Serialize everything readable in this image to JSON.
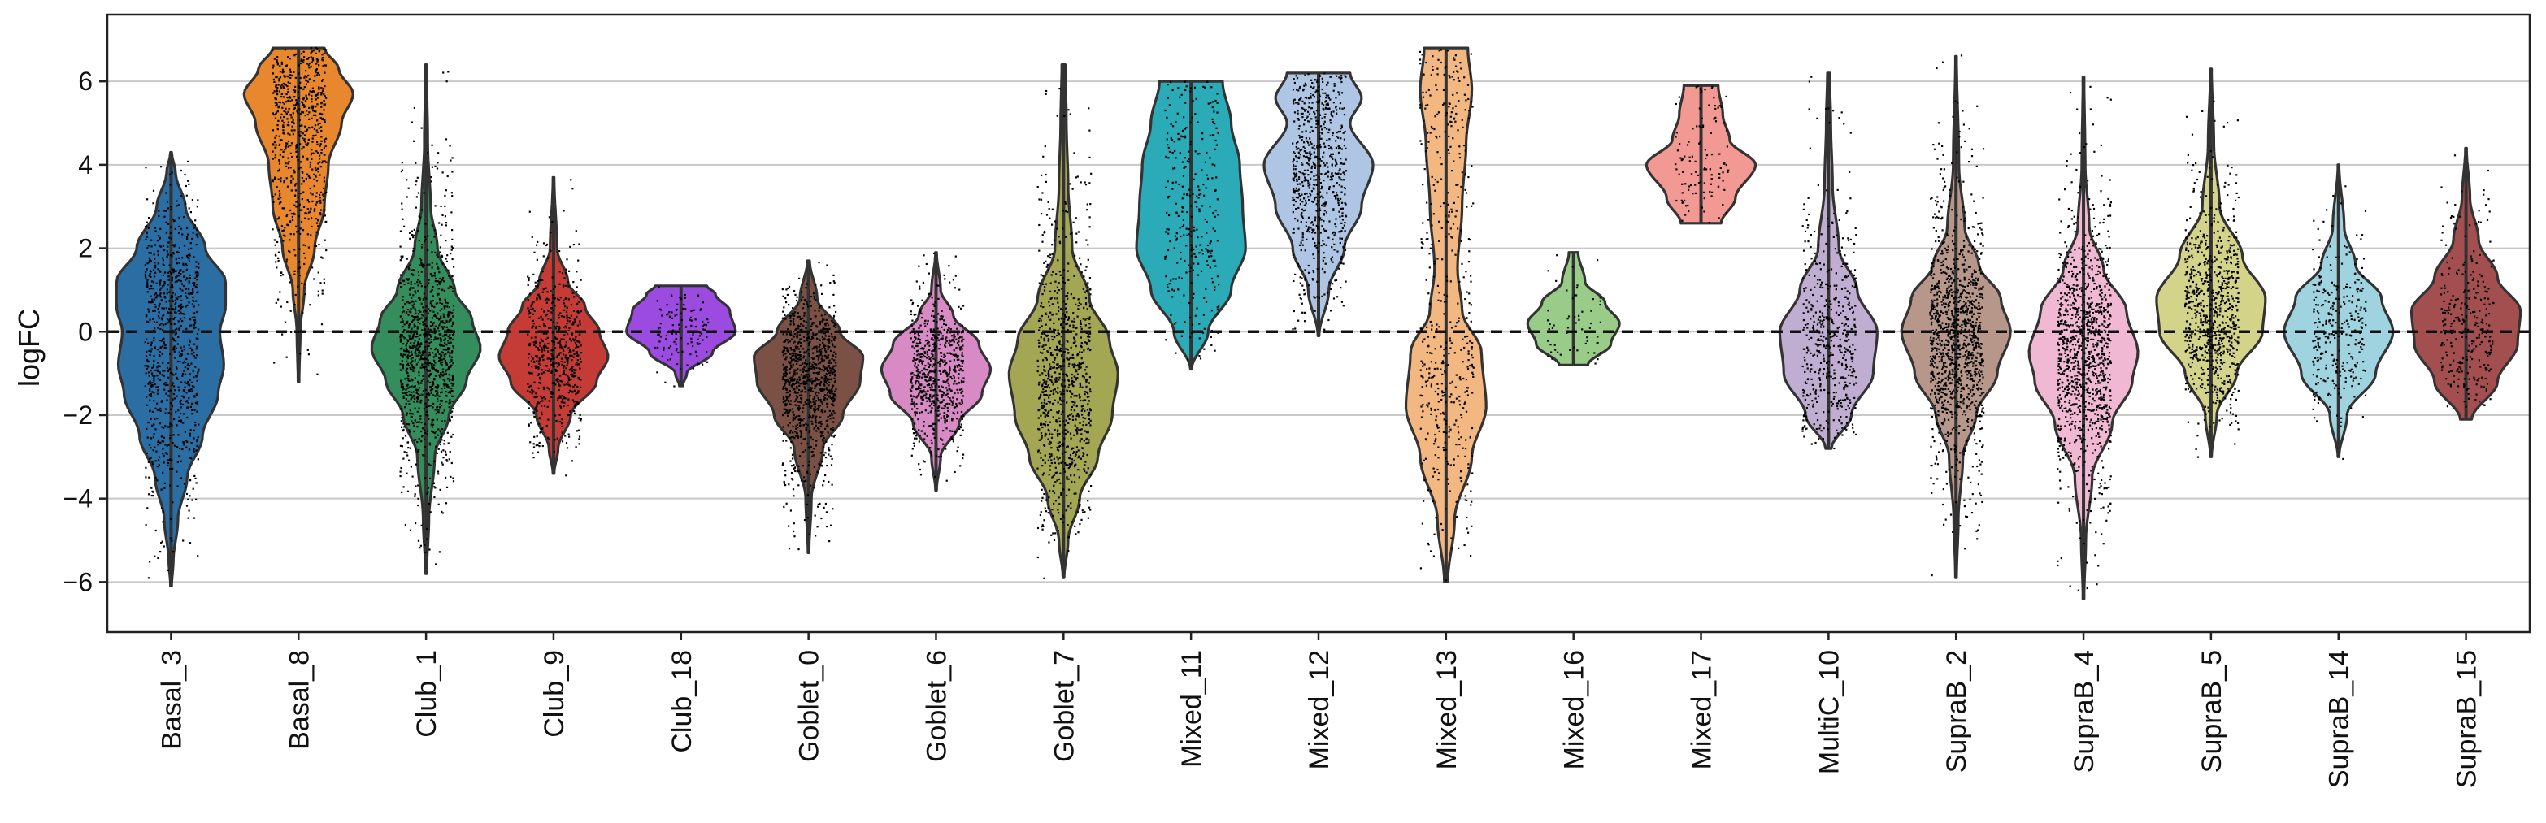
{
  "chart_data": {
    "type": "violin",
    "ylabel": "logFC",
    "xlabel": "",
    "ylim": [
      -7.2,
      7.6
    ],
    "yticks": [
      -6,
      -4,
      -2,
      0,
      2,
      4,
      6
    ],
    "grid": "horizontal",
    "reference_line": {
      "y": 0,
      "style": "dashed",
      "color": "#111111"
    },
    "categories": [
      {
        "name": "Basal_3",
        "color": "#2b6ea3",
        "min": -6.1,
        "max": 4.3,
        "profile": [
          [
            -6.1,
            0.01
          ],
          [
            -5.5,
            0.04
          ],
          [
            -4.5,
            0.12
          ],
          [
            -3.5,
            0.28
          ],
          [
            -2.5,
            0.55
          ],
          [
            -1.5,
            0.82
          ],
          [
            -0.8,
            0.92
          ],
          [
            0,
            0.85
          ],
          [
            0.6,
            0.95
          ],
          [
            1.2,
            0.95
          ],
          [
            2.0,
            0.6
          ],
          [
            3.0,
            0.25
          ],
          [
            3.8,
            0.08
          ],
          [
            4.3,
            0.01
          ]
        ],
        "points": 900
      },
      {
        "name": "Basal_8",
        "color": "#e8872e",
        "min": -1.2,
        "max": 6.8,
        "profile": [
          [
            -1.2,
            0.01
          ],
          [
            0,
            0.03
          ],
          [
            1.0,
            0.1
          ],
          [
            2.0,
            0.28
          ],
          [
            3.0,
            0.45
          ],
          [
            4.0,
            0.52
          ],
          [
            5.0,
            0.75
          ],
          [
            5.7,
            0.95
          ],
          [
            6.3,
            0.7
          ],
          [
            6.8,
            0.45
          ]
        ],
        "points": 700
      },
      {
        "name": "Club_1",
        "color": "#338d5c",
        "min": -5.8,
        "max": 6.4,
        "profile": [
          [
            -5.8,
            0.01
          ],
          [
            -4.5,
            0.05
          ],
          [
            -3,
            0.15
          ],
          [
            -2,
            0.4
          ],
          [
            -1.2,
            0.7
          ],
          [
            -0.4,
            0.95
          ],
          [
            0.3,
            0.8
          ],
          [
            1.0,
            0.5
          ],
          [
            2.0,
            0.2
          ],
          [
            3.0,
            0.08
          ],
          [
            4.5,
            0.03
          ],
          [
            6.4,
            0.01
          ]
        ],
        "points": 1100
      },
      {
        "name": "Club_9",
        "color": "#c53b35",
        "min": -3.4,
        "max": 3.7,
        "profile": [
          [
            -3.4,
            0.01
          ],
          [
            -2.8,
            0.08
          ],
          [
            -2,
            0.3
          ],
          [
            -1.2,
            0.75
          ],
          [
            -0.6,
            0.95
          ],
          [
            0,
            0.8
          ],
          [
            0.6,
            0.55
          ],
          [
            1.2,
            0.25
          ],
          [
            2,
            0.06
          ],
          [
            3.7,
            0.01
          ]
        ],
        "points": 600
      },
      {
        "name": "Club_18",
        "color": "#9b4be0",
        "min": -1.3,
        "max": 1.1,
        "profile": [
          [
            -1.3,
            0.03
          ],
          [
            -1.0,
            0.1
          ],
          [
            -0.5,
            0.55
          ],
          [
            0,
            0.95
          ],
          [
            0.5,
            0.85
          ],
          [
            0.9,
            0.6
          ],
          [
            1.1,
            0.45
          ]
        ],
        "points": 120
      },
      {
        "name": "Goblet_0",
        "color": "#7a5144",
        "min": -5.3,
        "max": 1.7,
        "profile": [
          [
            -5.3,
            0.01
          ],
          [
            -4,
            0.05
          ],
          [
            -2.8,
            0.25
          ],
          [
            -2,
            0.6
          ],
          [
            -1.2,
            0.9
          ],
          [
            -0.6,
            0.95
          ],
          [
            0,
            0.55
          ],
          [
            0.8,
            0.15
          ],
          [
            1.7,
            0.02
          ]
        ],
        "points": 1000
      },
      {
        "name": "Goblet_6",
        "color": "#d88ac4",
        "min": -3.8,
        "max": 1.9,
        "profile": [
          [
            -3.8,
            0.01
          ],
          [
            -3,
            0.08
          ],
          [
            -2.2,
            0.4
          ],
          [
            -1.5,
            0.8
          ],
          [
            -0.9,
            0.95
          ],
          [
            -0.3,
            0.75
          ],
          [
            0.4,
            0.3
          ],
          [
            1.0,
            0.08
          ],
          [
            1.9,
            0.01
          ]
        ],
        "points": 700
      },
      {
        "name": "Goblet_7",
        "color": "#a3a653",
        "min": -5.9,
        "max": 6.4,
        "profile": [
          [
            -5.9,
            0.01
          ],
          [
            -5,
            0.08
          ],
          [
            -4,
            0.28
          ],
          [
            -3,
            0.6
          ],
          [
            -2,
            0.85
          ],
          [
            -1,
            0.95
          ],
          [
            -0.2,
            0.8
          ],
          [
            0.8,
            0.45
          ],
          [
            2,
            0.15
          ],
          [
            3.5,
            0.08
          ],
          [
            5,
            0.05
          ],
          [
            6.4,
            0.03
          ]
        ],
        "points": 900
      },
      {
        "name": "Mixed_11",
        "color": "#2baab8",
        "min": -0.9,
        "max": 6.0,
        "profile": [
          [
            -0.9,
            0.01
          ],
          [
            0,
            0.3
          ],
          [
            1.0,
            0.7
          ],
          [
            2.0,
            0.95
          ],
          [
            3.0,
            0.9
          ],
          [
            4.0,
            0.85
          ],
          [
            5.0,
            0.7
          ],
          [
            6.0,
            0.55
          ]
        ],
        "points": 300
      },
      {
        "name": "Mixed_12",
        "color": "#aec6e3",
        "min": -0.1,
        "max": 6.2,
        "profile": [
          [
            -0.1,
            0.01
          ],
          [
            1.0,
            0.18
          ],
          [
            2.0,
            0.45
          ],
          [
            3.0,
            0.75
          ],
          [
            4.0,
            0.95
          ],
          [
            5.0,
            0.55
          ],
          [
            5.6,
            0.75
          ],
          [
            6.2,
            0.55
          ]
        ],
        "points": 700
      },
      {
        "name": "Mixed_13",
        "color": "#f3b882",
        "min": -6.0,
        "max": 6.8,
        "profile": [
          [
            -6.0,
            0.03
          ],
          [
            -4.5,
            0.15
          ],
          [
            -3,
            0.45
          ],
          [
            -1.8,
            0.7
          ],
          [
            -0.5,
            0.62
          ],
          [
            0.5,
            0.28
          ],
          [
            1.5,
            0.2
          ],
          [
            3,
            0.28
          ],
          [
            4.5,
            0.35
          ],
          [
            5.8,
            0.45
          ],
          [
            6.8,
            0.38
          ]
        ],
        "points": 500
      },
      {
        "name": "Mixed_16",
        "color": "#99cc88",
        "min": -0.8,
        "max": 1.9,
        "profile": [
          [
            -0.8,
            0.25
          ],
          [
            -0.3,
            0.65
          ],
          [
            0.2,
            0.8
          ],
          [
            0.7,
            0.55
          ],
          [
            1.2,
            0.2
          ],
          [
            1.9,
            0.08
          ]
        ],
        "points": 60
      },
      {
        "name": "Mixed_17",
        "color": "#f39994",
        "min": 2.6,
        "max": 5.9,
        "profile": [
          [
            2.6,
            0.35
          ],
          [
            3.2,
            0.6
          ],
          [
            4.0,
            0.95
          ],
          [
            4.6,
            0.5
          ],
          [
            5.2,
            0.38
          ],
          [
            5.9,
            0.3
          ]
        ],
        "points": 120
      },
      {
        "name": "MultiC_10",
        "color": "#bfaed1",
        "min": -2.8,
        "max": 6.2,
        "profile": [
          [
            -2.8,
            0.05
          ],
          [
            -2,
            0.4
          ],
          [
            -1,
            0.78
          ],
          [
            0,
            0.85
          ],
          [
            1.0,
            0.5
          ],
          [
            2.0,
            0.18
          ],
          [
            3.5,
            0.07
          ],
          [
            5,
            0.04
          ],
          [
            6.2,
            0.02
          ]
        ],
        "points": 500
      },
      {
        "name": "SupraB_2",
        "color": "#b7978a",
        "min": -5.9,
        "max": 6.6,
        "profile": [
          [
            -5.9,
            0.01
          ],
          [
            -4.5,
            0.04
          ],
          [
            -3,
            0.12
          ],
          [
            -2,
            0.35
          ],
          [
            -1,
            0.72
          ],
          [
            0,
            0.95
          ],
          [
            0.8,
            0.78
          ],
          [
            1.6,
            0.4
          ],
          [
            2.5,
            0.15
          ],
          [
            4,
            0.05
          ],
          [
            6.6,
            0.01
          ]
        ],
        "points": 1200
      },
      {
        "name": "SupraB_4",
        "color": "#f0b8d3",
        "min": -6.4,
        "max": 6.1,
        "profile": [
          [
            -6.4,
            0.01
          ],
          [
            -5,
            0.04
          ],
          [
            -3.5,
            0.15
          ],
          [
            -2.2,
            0.5
          ],
          [
            -1.2,
            0.85
          ],
          [
            -0.5,
            0.95
          ],
          [
            0.5,
            0.75
          ],
          [
            1.5,
            0.35
          ],
          [
            2.5,
            0.1
          ],
          [
            4,
            0.03
          ],
          [
            6.1,
            0.01
          ]
        ],
        "points": 1100
      },
      {
        "name": "SupraB_5",
        "color": "#d4d38a",
        "min": -3.0,
        "max": 6.3,
        "profile": [
          [
            -3.0,
            0.01
          ],
          [
            -2,
            0.1
          ],
          [
            -1,
            0.45
          ],
          [
            0,
            0.9
          ],
          [
            0.8,
            0.95
          ],
          [
            1.8,
            0.55
          ],
          [
            3,
            0.15
          ],
          [
            4.5,
            0.05
          ],
          [
            6.3,
            0.01
          ]
        ],
        "points": 800
      },
      {
        "name": "SupraB_14",
        "color": "#9fd3e0",
        "min": -3.0,
        "max": 4.0,
        "profile": [
          [
            -3.0,
            0.01
          ],
          [
            -2,
            0.15
          ],
          [
            -1,
            0.65
          ],
          [
            0,
            0.95
          ],
          [
            0.8,
            0.75
          ],
          [
            1.6,
            0.3
          ],
          [
            2.5,
            0.1
          ],
          [
            4.0,
            0.01
          ]
        ],
        "points": 300
      },
      {
        "name": "SupraB_15",
        "color": "#a34f4f",
        "min": -2.1,
        "max": 4.4,
        "profile": [
          [
            -2.1,
            0.1
          ],
          [
            -1.2,
            0.55
          ],
          [
            -0.3,
            0.9
          ],
          [
            0.5,
            0.95
          ],
          [
            1.3,
            0.55
          ],
          [
            2.2,
            0.22
          ],
          [
            3.2,
            0.07
          ],
          [
            4.4,
            0.01
          ]
        ],
        "points": 300
      }
    ]
  }
}
